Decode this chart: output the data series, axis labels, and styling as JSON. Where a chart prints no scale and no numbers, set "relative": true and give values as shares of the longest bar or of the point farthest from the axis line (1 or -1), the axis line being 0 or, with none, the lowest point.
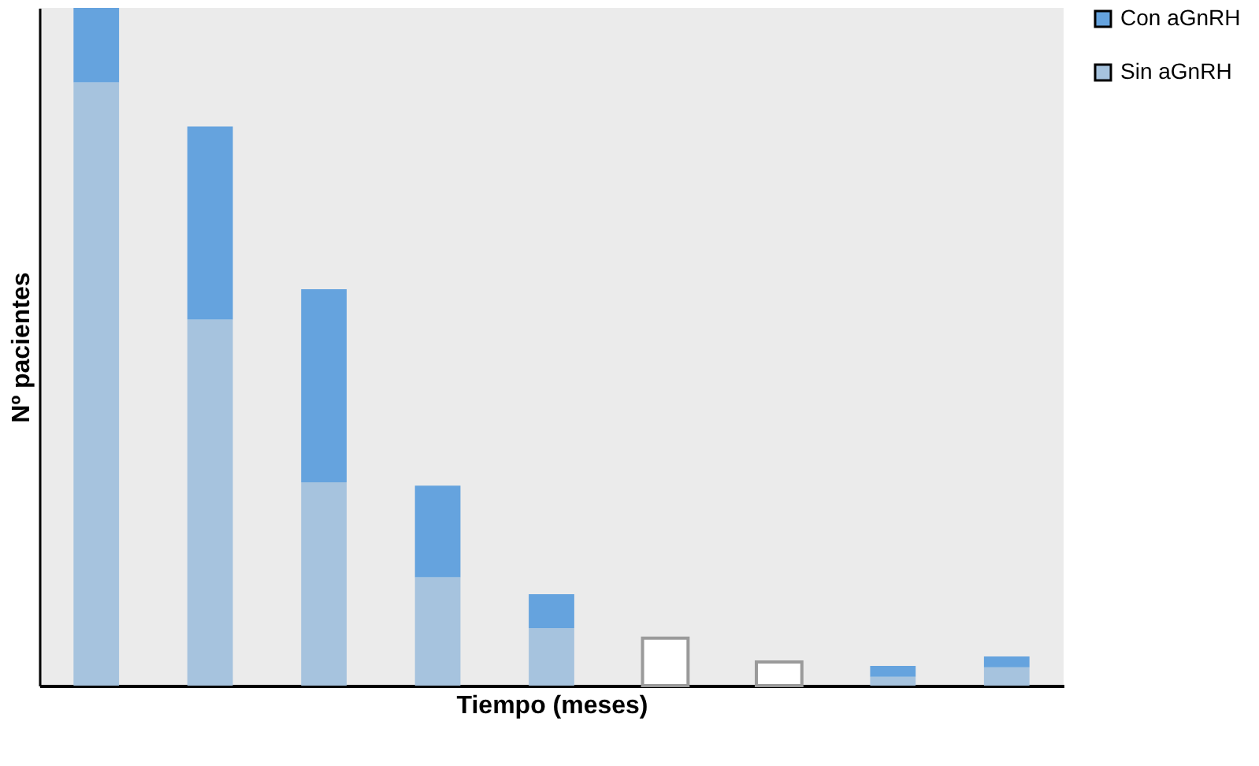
{
  "chart_data": {
    "type": "bar",
    "stacked": true,
    "relative": true,
    "xlabel": "Tiempo (meses)",
    "ylabel": "Nº pacientes",
    "legend": "right",
    "categories": [
      null,
      null,
      null,
      null,
      null,
      null,
      null,
      null,
      null
    ],
    "series": [
      {
        "name": "Sin aGnRH",
        "color": "#a6c3de",
        "colors": [
          "#a6c3de",
          "#a6c3de",
          "#a6c3de",
          "#a6c3de",
          "#a6c3de",
          "#ffffff",
          "#ffffff",
          "#a6c3de",
          "#a6c3de"
        ],
        "values": [
          0.89,
          0.54,
          0.3,
          0.16,
          0.085,
          0.07,
          0.035,
          0.013,
          0.027
        ]
      },
      {
        "name": "Con aGnRH",
        "color": "#65a3de",
        "values": [
          0.11,
          0.285,
          0.285,
          0.135,
          0.05,
          0,
          0,
          0.016,
          0.016
        ]
      }
    ]
  }
}
